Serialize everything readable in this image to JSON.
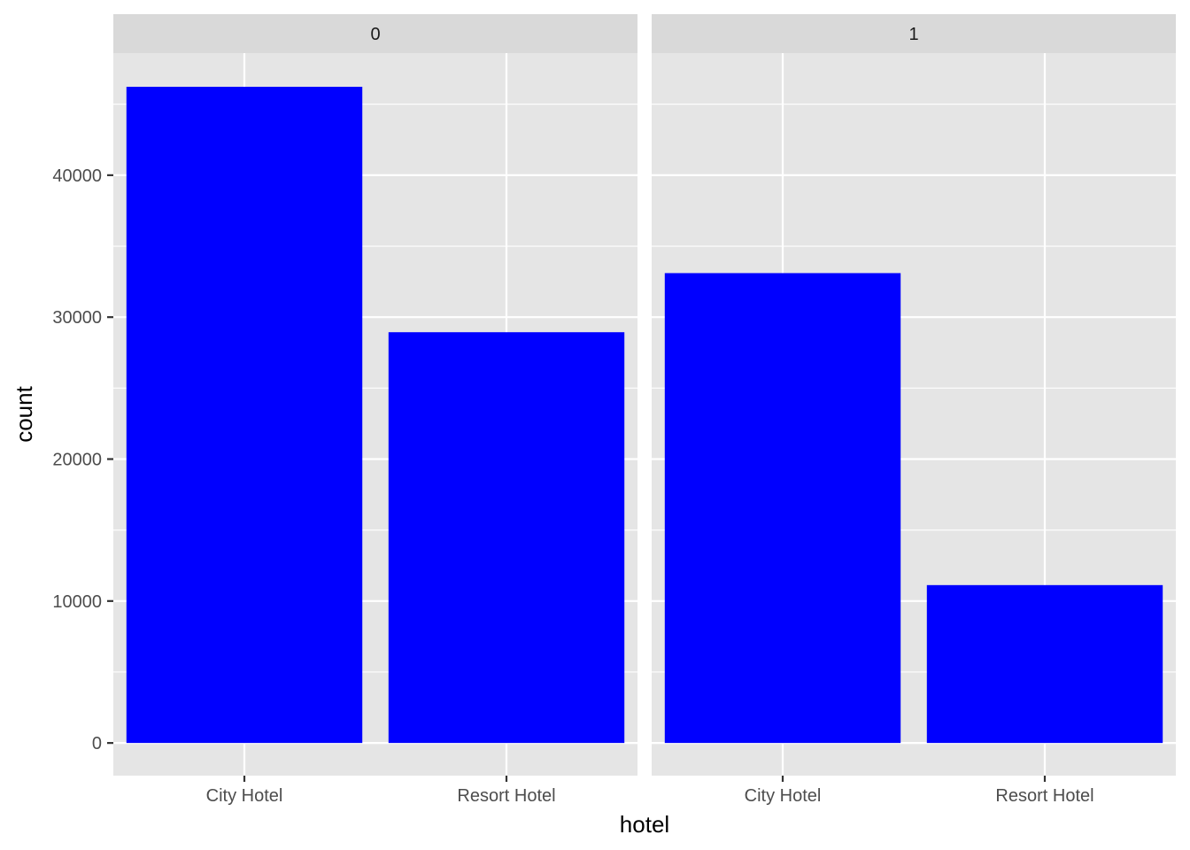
{
  "chart_data": {
    "type": "bar",
    "facet_variable_levels": [
      "0",
      "1"
    ],
    "categories": [
      "City Hotel",
      "Resort Hotel"
    ],
    "panels": [
      {
        "label": "0",
        "values": [
          46228,
          28938
        ]
      },
      {
        "label": "1",
        "values": [
          33102,
          11122
        ]
      }
    ],
    "xlabel": "hotel",
    "ylabel": "count",
    "ylim": [
      -2300,
      48600
    ],
    "yticks": [
      0,
      10000,
      20000,
      30000,
      40000
    ],
    "ytick_labels": [
      "0",
      "10000",
      "20000",
      "30000",
      "40000"
    ],
    "grid": true,
    "legend": "none"
  },
  "colors": {
    "bar": "#0000ff",
    "panel_bg": "#e5e5e5",
    "strip_bg": "#d9d9d9",
    "grid": "#ffffff",
    "tick": "#333333"
  }
}
